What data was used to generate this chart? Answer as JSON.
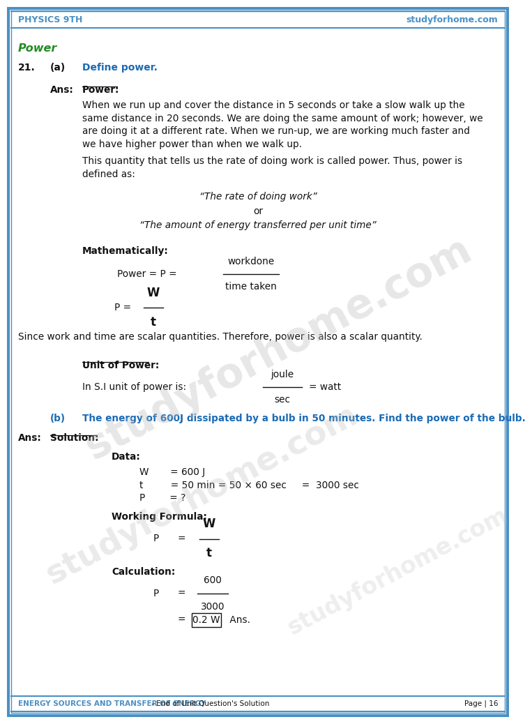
{
  "header_left": "PHYSICS 9TH",
  "header_right": "studyforhome.com",
  "footer_left": "ENERGY SOURCES AND TRANSFER OF ENERGY",
  "footer_middle": " - End of Unit Question's Solution",
  "footer_right": "Page | 16",
  "section_title": "Power",
  "q21_label": "21.",
  "q21a_label": "(a)",
  "q21a_text": "Define power.",
  "ans_label": "Ans:",
  "power_underline": "Power:",
  "para1_line1": "When we run up and cover the distance in 5 seconds or take a slow walk up the",
  "para1_line2": "same distance in 20 seconds. We are doing the same amount of work; however, we",
  "para1_line3": "are doing it at a different rate. When we run-up, we are working much faster and",
  "para1_line4": "we have higher power than when we walk up.",
  "para2_line1": "This quantity that tells us the rate of doing work is called power. Thus, power is",
  "para2_line2": "defined as:",
  "quote1": "“The rate of doing work”",
  "or_text": "or",
  "quote2": "“The amount of energy transferred per unit time”",
  "math_label": "Mathematically:",
  "formula1_prefix": "Power = P = ",
  "formula1_num": "workdone",
  "formula1_den": "time taken",
  "formula2_num": "W",
  "formula2_den": "t",
  "scalar_text": "Since work and time are scalar quantities. Therefore, power is also a scalar quantity.",
  "unit_label": "Unit of Power:",
  "unit_text": "In S.I unit of power is:",
  "unit_num": "joule",
  "unit_den": "sec",
  "unit_eq": "= watt",
  "qb_label": "(b)",
  "qb_text": "The energy of 600J dissipated by a bulb in 50 minutes. Find the power of the bulb.",
  "ans2_label": "Ans:",
  "sol_label": "Solution:",
  "data_label": "Data:",
  "data_W": "W       = 600 J",
  "data_t": "t         = 50 min = 50 × 60 sec     =  3000 sec",
  "data_P": "P        = ?",
  "wf_label": "Working Formula:",
  "calc_label": "Calculation:",
  "calc_num": "600",
  "calc_den": "3000",
  "watermark1": "studyforhome.com",
  "watermark2": "studyforhome.com",
  "watermark3": "studyforhome.com",
  "border_color": "#4a90c4",
  "header_color": "#4a90c4",
  "section_color": "#228B22",
  "question_color": "#1a6bb5",
  "bg_color": "#ffffff",
  "text_color": "#111111"
}
